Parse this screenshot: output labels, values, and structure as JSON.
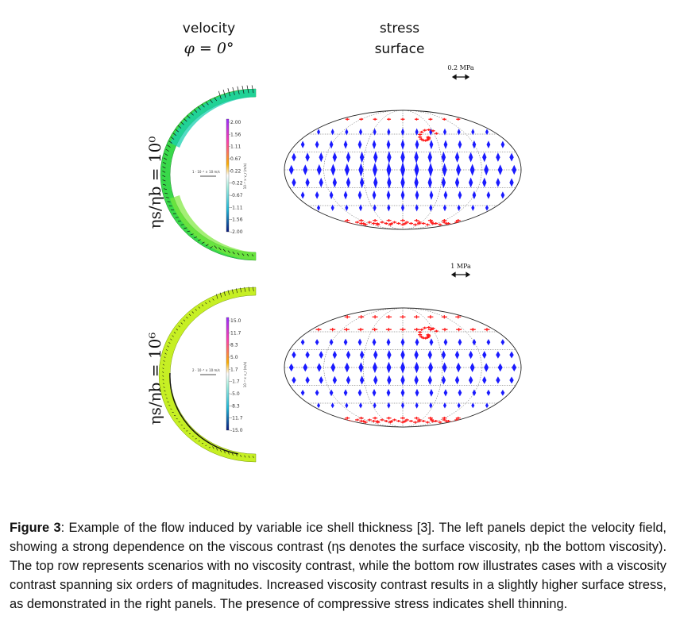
{
  "headers": {
    "velocity_label": "velocity",
    "phi_label": "φ = 0°",
    "stress_line1": "stress",
    "stress_line2": "surface"
  },
  "rows": [
    {
      "label": "ηs/ηb = 10⁰",
      "scale_label": "0.2 MPa",
      "colorbar_ticks": [
        "2.00",
        "1.56",
        "1.11",
        "0.67",
        "0.22",
        "-0.22",
        "-0.67",
        "-1.11",
        "-1.56",
        "-2.00"
      ],
      "velocity_scale_label": "1 · 10⁻³ × 10 m/s",
      "colorbar_unit": "10⁻³ × v_r (m/s)"
    },
    {
      "label": "ηs/ηb = 10⁶",
      "scale_label": "1 MPa",
      "colorbar_ticks": [
        "15.0",
        "11.7",
        "8.3",
        "5.0",
        "1.7",
        "-1.7",
        "-5.0",
        "-8.3",
        "-11.7",
        "-15.0"
      ],
      "velocity_scale_label": "2 · 10⁻³ × 10 m/s",
      "colorbar_unit": "10⁻³ × v_r (m/s)"
    }
  ],
  "caption": {
    "figure_label": "Figure 3",
    "text": ": Example of the flow induced by variable ice shell thickness [3]. The left panels depict the velocity field, showing a strong dependence on the viscous contrast (ηs denotes the surface viscosity, ηb the bottom viscosity). The top row represents scenarios with no viscosity contrast, while the bottom row illustrates cases with a viscosity contrast spanning six orders of magnitudes. Increased viscosity contrast results in a slightly higher surface stress, as demonstrated in the right panels. The presence of compressive stress indicates shell thinning."
  },
  "colors": {
    "tension": "#ff1a1a",
    "compression": "#1a1aff",
    "shell_top": "#3ddc4a",
    "shell_bottom": "#c9ef2a"
  }
}
